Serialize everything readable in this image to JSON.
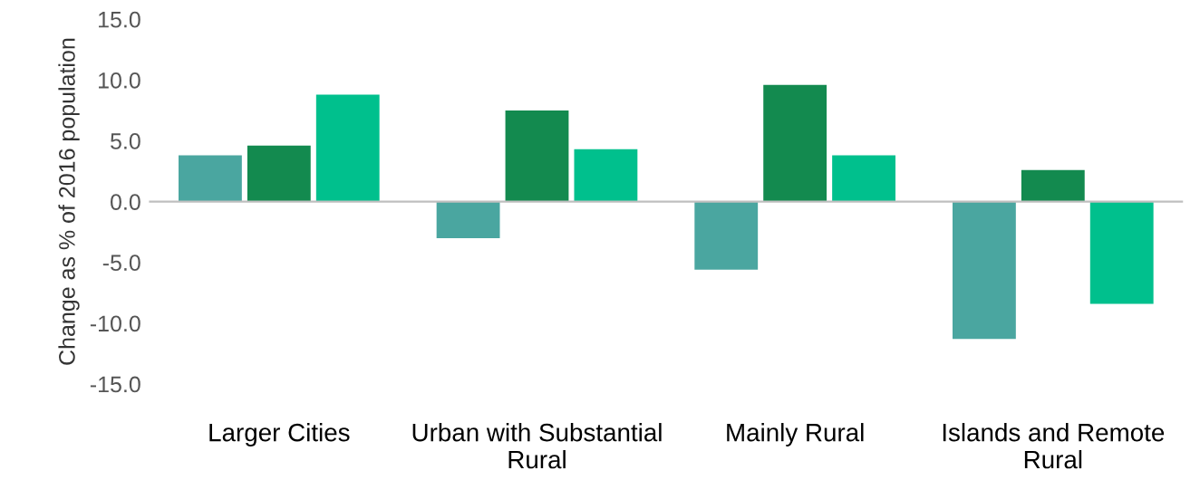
{
  "chart_data": {
    "type": "bar",
    "ylabel": "Change as % of 2016 population",
    "categories": [
      "Larger Cities",
      "Urban with Substantial\nRural",
      "Mainly Rural",
      "Islands and Remote\nRural"
    ],
    "series": [
      {
        "color": "#4aa6a0",
        "values": [
          3.8,
          -3.0,
          -5.6,
          -11.3
        ]
      },
      {
        "color": "#138a4f",
        "values": [
          4.6,
          7.5,
          9.6,
          2.6
        ]
      },
      {
        "color": "#00c08d",
        "values": [
          8.8,
          4.3,
          3.8,
          -8.4
        ]
      }
    ],
    "ylim": [
      -15,
      15
    ],
    "yticks": [
      {
        "value": -15,
        "label": "-15.0"
      },
      {
        "value": -10,
        "label": "-10.0"
      },
      {
        "value": -5,
        "label": "-5.0"
      },
      {
        "value": 0,
        "label": "0.0"
      },
      {
        "value": 5,
        "label": "5.0"
      },
      {
        "value": 10,
        "label": "10.0"
      },
      {
        "value": 15,
        "label": "15.0"
      }
    ],
    "legend": false
  }
}
